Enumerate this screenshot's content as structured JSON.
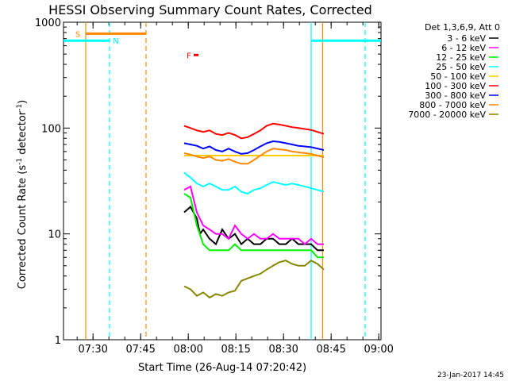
{
  "chart_data": {
    "type": "line",
    "title": "HESSI Observing Summary Count Rates, Corrected",
    "xlabel": "Start Time (26-Aug-14 07:20:42)",
    "ylabel_prefix": "Corrected Count Rate (s",
    "ylabel_sup": "-1",
    "ylabel_mid": " detector",
    "ylabel_sup2": "-1",
    "ylabel_suffix": ")",
    "y_scale": "log",
    "ylim": [
      1,
      1000
    ],
    "xlim_min": [
      0,
      100
    ],
    "y_ticks": [
      {
        "value": 1,
        "label": "1"
      },
      {
        "value": 10,
        "label": "10"
      },
      {
        "value": 100,
        "label": "100"
      },
      {
        "value": 1000,
        "label": "1000"
      }
    ],
    "x_ticks": [
      {
        "value": 9.3,
        "label": "07:30"
      },
      {
        "value": 24.3,
        "label": "07:45"
      },
      {
        "value": 39.3,
        "label": "08:00"
      },
      {
        "value": 54.3,
        "label": "08:15"
      },
      {
        "value": 69.3,
        "label": "08:30"
      },
      {
        "value": 84.3,
        "label": "08:45"
      },
      {
        "value": 99.3,
        "label": "09:00"
      }
    ],
    "legend_title": "Det 1,3,6,9, Att 0",
    "legend_placement": "right",
    "series": [
      {
        "name": "3 - 6 keV",
        "color": "#000000",
        "x": [
          38,
          40,
          42,
          43,
          44,
          46,
          48,
          50,
          52,
          54,
          56,
          58,
          60,
          62,
          64,
          66,
          68,
          70,
          72,
          74,
          76,
          78,
          80,
          82
        ],
        "y": [
          16,
          18,
          14,
          10,
          11,
          9,
          8,
          11,
          9,
          10,
          8,
          9,
          8,
          8,
          9,
          9,
          8,
          8,
          9,
          8,
          8,
          8,
          7,
          7
        ]
      },
      {
        "name": "6 - 12 keV",
        "color": "#ff00ff",
        "x": [
          38,
          40,
          42,
          44,
          46,
          48,
          50,
          52,
          54,
          56,
          58,
          60,
          62,
          64,
          66,
          68,
          70,
          72,
          74,
          76,
          78,
          80,
          82
        ],
        "y": [
          26,
          28,
          16,
          12,
          11,
          10,
          10,
          9,
          12,
          10,
          9,
          10,
          9,
          9,
          10,
          9,
          9,
          9,
          9,
          8,
          9,
          8,
          8
        ]
      },
      {
        "name": "12 - 25 keV",
        "color": "#00ee00",
        "x": [
          38,
          40,
          42,
          44,
          46,
          48,
          50,
          52,
          54,
          56,
          58,
          60,
          62,
          64,
          66,
          68,
          70,
          72,
          74,
          76,
          78,
          80,
          82
        ],
        "y": [
          24,
          22,
          12,
          8,
          7,
          7,
          7,
          7,
          8,
          7,
          7,
          7,
          7,
          7,
          7,
          7,
          7,
          7,
          7,
          7,
          7,
          6,
          6
        ]
      },
      {
        "name": "25 - 50 keV",
        "color": "#00ffff",
        "x": [
          38,
          40,
          42,
          44,
          46,
          48,
          50,
          52,
          54,
          56,
          58,
          60,
          62,
          64,
          66,
          68,
          70,
          72,
          74,
          76,
          78,
          80,
          82
        ],
        "y": [
          38,
          34,
          30,
          28,
          30,
          28,
          26,
          26,
          28,
          25,
          24,
          26,
          27,
          29,
          31,
          30,
          29,
          30,
          29,
          28,
          27,
          26,
          25
        ]
      },
      {
        "name": "50 - 100 keV",
        "color": "#ffcc00",
        "x": [
          38,
          82
        ],
        "y": [
          55,
          55
        ]
      },
      {
        "name": "100 - 300 keV",
        "color": "#ff0000",
        "x": [
          38,
          40,
          42,
          44,
          46,
          48,
          50,
          52,
          54,
          56,
          58,
          60,
          62,
          64,
          66,
          68,
          70,
          72,
          74,
          76,
          78,
          80,
          82
        ],
        "y": [
          105,
          100,
          95,
          92,
          95,
          88,
          86,
          90,
          86,
          80,
          82,
          88,
          95,
          105,
          110,
          108,
          105,
          102,
          100,
          98,
          96,
          92,
          88
        ]
      },
      {
        "name": "300 - 800 keV",
        "color": "#0000ff",
        "x": [
          38,
          40,
          42,
          44,
          46,
          48,
          50,
          52,
          54,
          56,
          58,
          60,
          62,
          64,
          66,
          68,
          70,
          72,
          74,
          76,
          78,
          80,
          82
        ],
        "y": [
          72,
          70,
          68,
          64,
          67,
          62,
          60,
          64,
          60,
          57,
          58,
          62,
          67,
          72,
          75,
          74,
          72,
          70,
          68,
          67,
          66,
          64,
          62
        ]
      },
      {
        "name": "800 - 7000 keV",
        "color": "#ff8800",
        "x": [
          38,
          40,
          42,
          44,
          46,
          48,
          50,
          52,
          54,
          56,
          58,
          60,
          62,
          64,
          66,
          68,
          70,
          72,
          74,
          76,
          78,
          80,
          82
        ],
        "y": [
          58,
          56,
          54,
          52,
          54,
          50,
          49,
          51,
          48,
          46,
          46,
          50,
          55,
          60,
          64,
          63,
          62,
          60,
          59,
          58,
          57,
          55,
          53
        ]
      },
      {
        "name": "7000 - 20000 keV",
        "color": "#888800",
        "x": [
          38,
          40,
          42,
          44,
          46,
          48,
          50,
          52,
          54,
          56,
          58,
          60,
          62,
          64,
          66,
          68,
          70,
          72,
          74,
          76,
          78,
          80,
          82
        ],
        "y": [
          3.2,
          3.0,
          2.6,
          2.8,
          2.5,
          2.7,
          2.6,
          2.8,
          2.9,
          3.6,
          3.8,
          4.0,
          4.2,
          4.6,
          5.0,
          5.4,
          5.6,
          5.2,
          5.0,
          5.0,
          5.6,
          5.2,
          4.6
        ]
      }
    ],
    "segments": [
      {
        "label": "S",
        "color": "#ff8800",
        "x0": 7.0,
        "x1": 26.0,
        "y": 780
      },
      {
        "label": "N",
        "color": "#00ffff",
        "x0": 0.0,
        "x1": 14.5,
        "y": 670
      },
      {
        "label": "",
        "color": "#00ffff",
        "x0": 78.0,
        "x1": 100.0,
        "y": 670
      },
      {
        "label": "F",
        "color": "#ff0000",
        "x0": 41.0,
        "x1": 42.5,
        "y": 490
      }
    ],
    "vlines": [
      {
        "x": 7.0,
        "color": "#ff8800",
        "dash": false
      },
      {
        "x": 14.5,
        "color": "#00ffff",
        "dash": true
      },
      {
        "x": 26.0,
        "color": "#ff8800",
        "dash": true
      },
      {
        "x": 78.0,
        "color": "#00ffff",
        "dash": false
      },
      {
        "x": 81.6,
        "color": "#ff8800",
        "dash": false
      },
      {
        "x": 95.0,
        "color": "#00ffff",
        "dash": true
      }
    ],
    "footer_date": "23-Jan-2017 14:45"
  }
}
